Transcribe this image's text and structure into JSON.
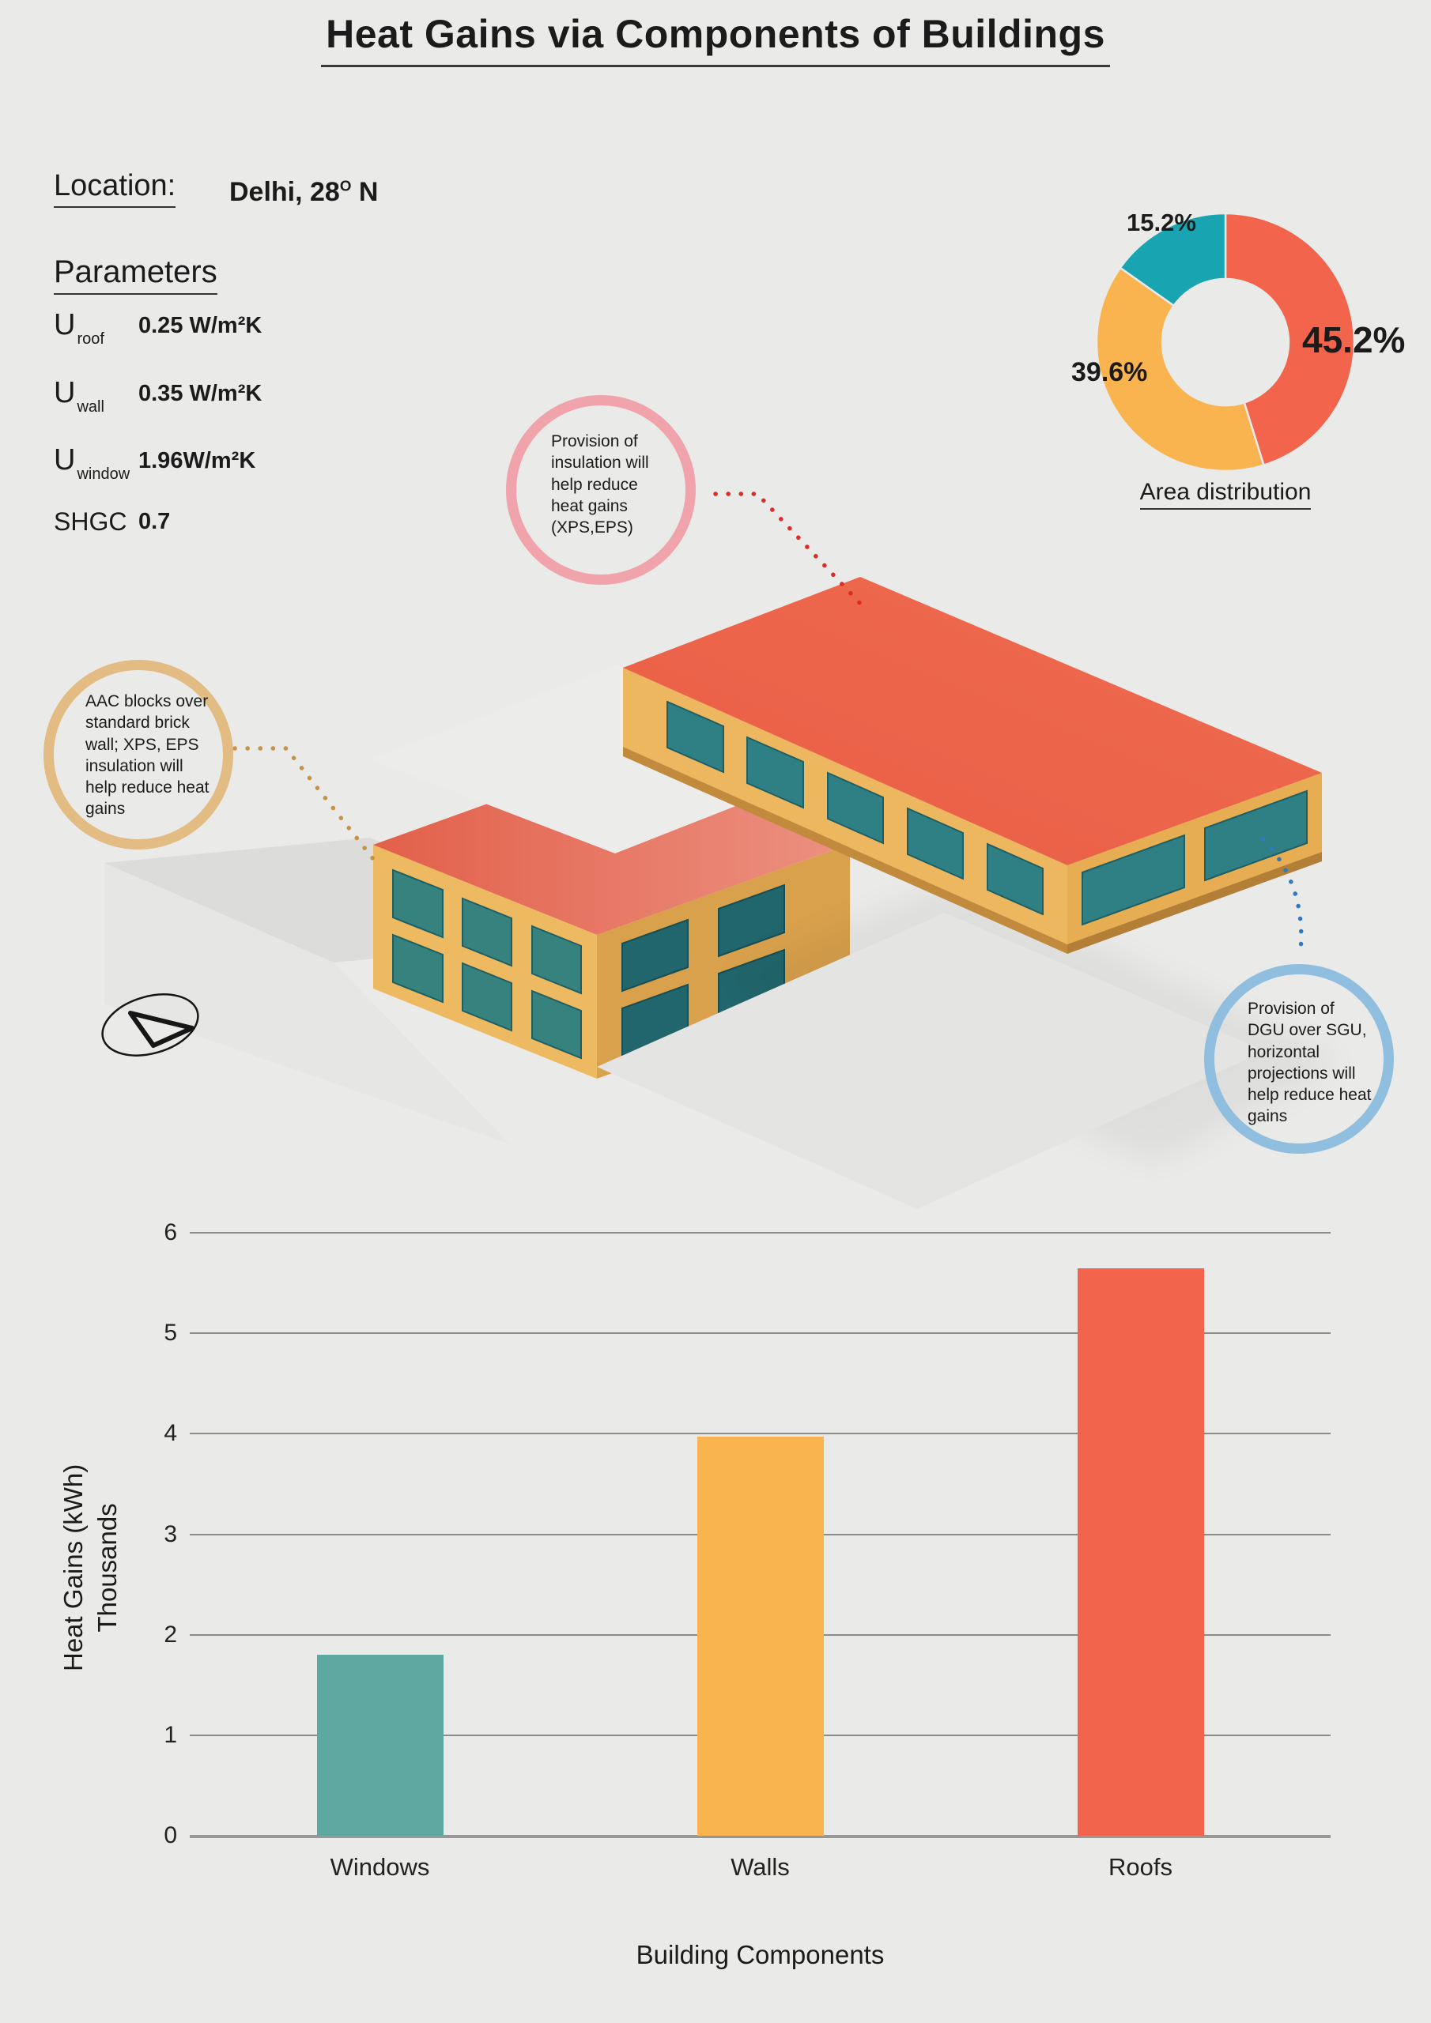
{
  "title": "Heat Gains via Components of Buildings",
  "location": {
    "label": "Location:",
    "city": "Delhi, 28",
    "degree": "O",
    "suffix": "N"
  },
  "parameters": {
    "heading": "Parameters",
    "rows": [
      {
        "symbol": "U",
        "sub": "roof",
        "value": "0.25 W/m²K"
      },
      {
        "symbol": "U",
        "sub": "wall",
        "value": "0.35 W/m²K"
      },
      {
        "symbol": "U",
        "sub": "window",
        "value": "1.96W/m²K"
      },
      {
        "symbol": "SHGC",
        "sub": "",
        "value": "0.7"
      }
    ]
  },
  "callouts": {
    "insulation": "Provision of insulation will help reduce heat gains (XPS,EPS)",
    "walls": "AAC blocks over standard brick wall; XPS, EPS insulation will help reduce heat gains",
    "glazing": "Provision of DGU over SGU, horizontal projections will help reduce heat gains"
  },
  "colors": {
    "background": "#eaeae9",
    "red": "#f2654c",
    "yellow": "#f9b450",
    "teal": "#19a4b2",
    "bar_teal": "#5fa8a2",
    "callout_pink": "#f0a3ab",
    "callout_tan": "#e2bc82",
    "callout_blue": "#8fbedf",
    "dot_red": "#dd2b26",
    "dot_tan": "#c89240",
    "dot_blue": "#2f79bc"
  },
  "chart_data": [
    {
      "type": "pie",
      "donut": true,
      "title": "Area distribution",
      "values": [
        45.2,
        39.6,
        15.2
      ],
      "labels": [
        "45.2%",
        "39.6%",
        "15.2%"
      ],
      "colors": [
        "red",
        "yellow",
        "teal"
      ],
      "start_angle": "top",
      "direction": "clockwise",
      "legend_position": "none"
    },
    {
      "type": "bar",
      "categories": [
        "Windows",
        "Walls",
        "Roofs"
      ],
      "values": [
        1.8,
        3.97,
        5.65
      ],
      "colors": [
        "bar_teal",
        "yellow",
        "red"
      ],
      "title": "",
      "xlabel": "Building Components",
      "ylabel": "Heat Gains (kWh)",
      "ylabel2": "Thousands",
      "ylim": [
        0,
        6
      ],
      "ytick_step": 1,
      "grid": true
    }
  ]
}
